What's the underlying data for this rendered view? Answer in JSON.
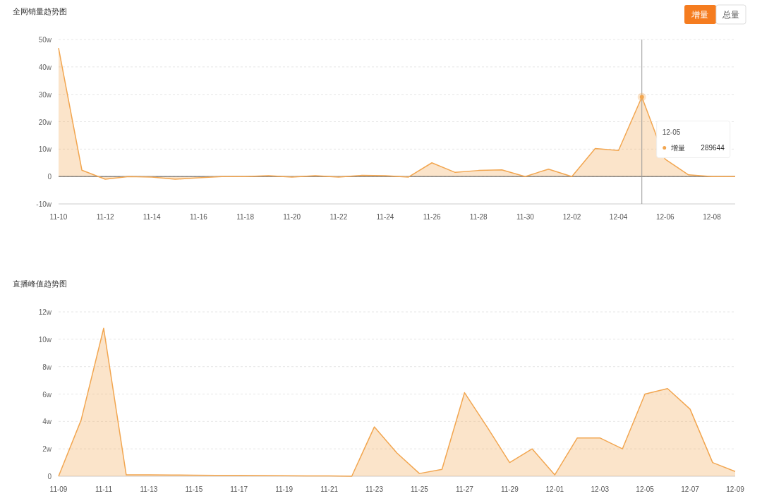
{
  "chart_data": [
    {
      "type": "area",
      "title": "全网销量趋势图",
      "x": [
        "--11-10",
        "--11-11",
        "--11-12",
        "--11-13",
        "--11-14",
        "--11-15",
        "--11-16",
        "--11-17",
        "--11-18",
        "--11-19",
        "--11-20",
        "--11-21",
        "--11-22",
        "--11-23",
        "--11-24",
        "--11-25",
        "--11-26",
        "--11-27",
        "--11-28",
        "--11-29",
        "--11-30",
        "--12-01",
        "--12-02",
        "--12-03",
        "--12-04",
        "--12-05",
        "--12-06",
        "--12-07",
        "--12-08",
        "--12-09"
      ],
      "series": [
        {
          "color": "#f2a650",
          "values": [
            46.9,
            2.3,
            -1,
            0,
            -0.2,
            -1,
            -0.5,
            0,
            0,
            0.3,
            -0.2,
            0.3,
            -0.2,
            0.4,
            0.3,
            -0.2,
            5,
            1.5,
            2.2,
            2.4,
            0,
            2.7,
            0,
            10.2,
            9.5,
            29,
            6.3,
            0.6,
            0,
            0
          ]
        }
      ],
      "xlim": [
        "--11-10",
        "--12-09"
      ],
      "xticks": [
        {
          "value": "--11-10",
          "label": "11-10"
        },
        {
          "value": "--11-12",
          "label": "11-12"
        },
        {
          "value": "--11-14",
          "label": "11-14"
        },
        {
          "value": "--11-16",
          "label": "11-16"
        },
        {
          "value": "--11-18",
          "label": "11-18"
        },
        {
          "value": "--11-20",
          "label": "11-20"
        },
        {
          "value": "--11-22",
          "label": "11-22"
        },
        {
          "value": "--11-24",
          "label": "11-24"
        },
        {
          "value": "--11-26",
          "label": "11-26"
        },
        {
          "value": "--11-28",
          "label": "11-28"
        },
        {
          "value": "--11-30",
          "label": "11-30"
        },
        {
          "value": "--12-02",
          "label": "12-02"
        },
        {
          "value": "--12-04",
          "label": "12-04"
        },
        {
          "value": "--12-06",
          "label": "12-06"
        },
        {
          "value": "--12-08",
          "label": "12-08"
        }
      ],
      "ylim": [
        -10,
        50
      ],
      "yticks": [
        {
          "value": -10,
          "label": "-10w"
        },
        0,
        {
          "value": 10,
          "label": "10w"
        },
        {
          "value": 20,
          "label": "20w"
        },
        {
          "value": 30,
          "label": "30w"
        },
        {
          "value": 40,
          "label": "40w"
        },
        {
          "value": 50,
          "label": "50w"
        }
      ],
      "grid": "y",
      "ref_lines": [
        {
          "axis": "x",
          "value": "--12-05",
          "color": "#999999"
        }
      ],
      "annotations": [
        "增量",
        "总量",
        "12-05",
        "增量",
        "289644"
      ]
    },
    {
      "type": "area",
      "title": "直播峰值趋势图",
      "x": [
        "--11-09",
        "--11-10",
        "--11-11",
        "--11-12",
        "--11-13",
        "--11-14",
        "--11-15",
        "--11-16",
        "--11-17",
        "--11-18",
        "--11-19",
        "--11-20",
        "--11-21",
        "--11-22",
        "--11-23",
        "--11-24",
        "--11-25",
        "--11-26",
        "--11-27",
        "--11-28",
        "--11-29",
        "--11-30",
        "--12-01",
        "--12-02",
        "--12-03",
        "--12-04",
        "--12-05",
        "--12-06",
        "--12-07",
        "--12-08",
        "--12-09"
      ],
      "series": [
        {
          "color": "#f2a650",
          "values": [
            0,
            4.1,
            10.8,
            0.1,
            0.1,
            0.09,
            0.08,
            0.07,
            0.06,
            0.05,
            0.04,
            0.03,
            0.02,
            0,
            3.6,
            1.7,
            0.2,
            0.5,
            6.1,
            3.6,
            1,
            2,
            0.1,
            2.8,
            2.8,
            2,
            6,
            6.4,
            4.9,
            1,
            0.35
          ]
        }
      ],
      "xlim": [
        "--11-09",
        "--12-09"
      ],
      "xticks": [
        {
          "value": "--11-09",
          "label": "11-09"
        },
        {
          "value": "--11-11",
          "label": "11-11"
        },
        {
          "value": "--11-13",
          "label": "11-13"
        },
        {
          "value": "--11-15",
          "label": "11-15"
        },
        {
          "value": "--11-17",
          "label": "11-17"
        },
        {
          "value": "--11-19",
          "label": "11-19"
        },
        {
          "value": "--11-21",
          "label": "11-21"
        },
        {
          "value": "--11-23",
          "label": "11-23"
        },
        {
          "value": "--11-25",
          "label": "11-25"
        },
        {
          "value": "--11-27",
          "label": "11-27"
        },
        {
          "value": "--11-29",
          "label": "11-29"
        },
        {
          "value": "--12-01",
          "label": "12-01"
        },
        {
          "value": "--12-03",
          "label": "12-03"
        },
        {
          "value": "--12-05",
          "label": "12-05"
        },
        {
          "value": "--12-07",
          "label": "12-07"
        },
        {
          "value": "--12-09",
          "label": "12-09"
        }
      ],
      "ylim": [
        0,
        12
      ],
      "yticks": [
        0,
        {
          "value": 2,
          "label": "2w"
        },
        {
          "value": 4,
          "label": "4w"
        },
        {
          "value": 6,
          "label": "6w"
        },
        {
          "value": 8,
          "label": "8w"
        },
        {
          "value": 10,
          "label": "10w"
        },
        {
          "value": 12,
          "label": "12w"
        }
      ],
      "grid": "y"
    }
  ]
}
